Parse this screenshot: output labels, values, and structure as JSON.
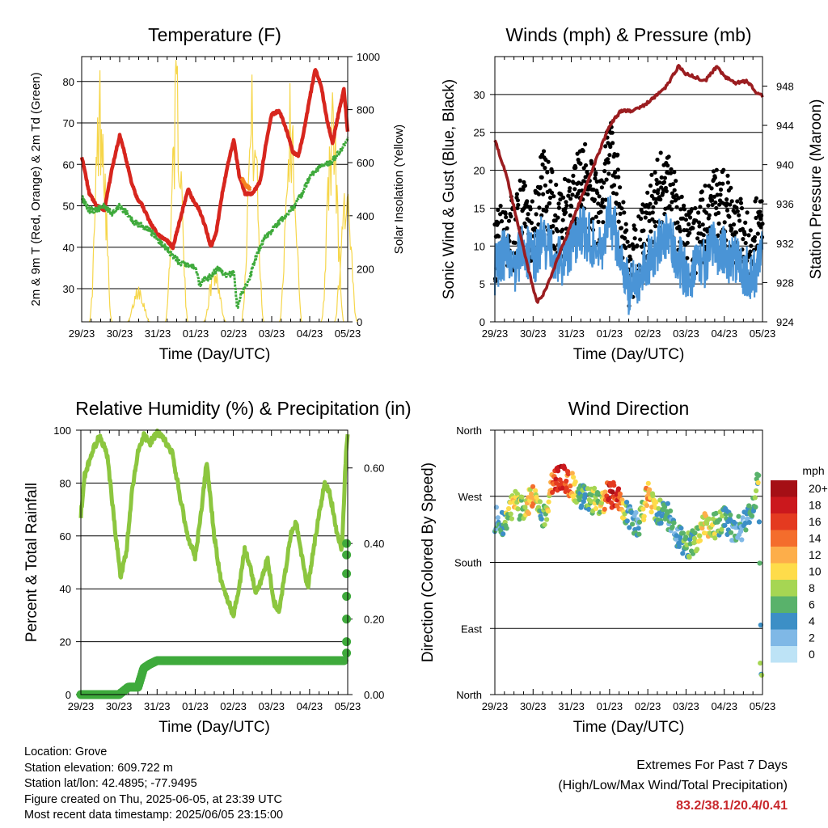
{
  "chart_data": [
    {
      "type": "line",
      "title": "Temperature (F)",
      "xlabel": "Time (Day/UTC)",
      "ylabel": "2m & 9m T (Red, Orange) & 2m Td (Green)",
      "ylabel_right": "Solar Insolation (Yellow)",
      "x_ticks": [
        "29/23",
        "30/23",
        "31/23",
        "01/23",
        "02/23",
        "03/23",
        "04/23",
        "05/23"
      ],
      "ylim": [
        22,
        86
      ],
      "y_ticks": [
        30,
        40,
        50,
        60,
        70,
        80
      ],
      "ylim_right": [
        0,
        1000
      ],
      "y_ticks_right": [
        0,
        200,
        400,
        600,
        800,
        1000
      ],
      "series": [
        {
          "key": "t2m",
          "color": "#d7261e",
          "x": [
            0,
            0.2,
            0.4,
            0.6,
            0.8,
            1,
            1.15,
            1.3,
            1.45,
            1.6,
            1.8,
            2,
            2.2,
            2.4,
            2.6,
            2.8,
            2.95,
            3.1,
            3.25,
            3.4,
            3.55,
            3.7,
            3.85,
            4,
            4.15,
            4.3,
            4.5,
            4.7,
            4.85,
            5,
            5.2,
            5.4,
            5.55,
            5.7,
            5.85,
            6,
            6.15,
            6.3,
            6.45,
            6.6,
            6.75,
            6.9,
            7
          ],
          "y": [
            62,
            53,
            50,
            49,
            59,
            67,
            62,
            56,
            52,
            50,
            46,
            43,
            42,
            40,
            47,
            54,
            51,
            49,
            45,
            40,
            44,
            53,
            60,
            66,
            57,
            53,
            53,
            56,
            65,
            72,
            73,
            68,
            63,
            62,
            68,
            76,
            83,
            79,
            71,
            65,
            72,
            78,
            68
          ]
        },
        {
          "key": "t9m",
          "color": "#f58220",
          "x": [
            4.2,
            4.3,
            4.45
          ],
          "y": [
            57,
            55,
            54
          ]
        },
        {
          "key": "td2m",
          "color": "#3faa3c",
          "x": [
            0,
            0.2,
            0.4,
            0.6,
            0.8,
            1,
            1.2,
            1.4,
            1.6,
            1.8,
            2,
            2.2,
            2.4,
            2.6,
            2.8,
            3,
            3.1,
            3.2,
            3.4,
            3.6,
            3.8,
            4,
            4.1,
            4.2,
            4.4,
            4.6,
            4.8,
            5,
            5.2,
            5.4,
            5.6,
            5.8,
            6,
            6.2,
            6.4,
            6.6,
            6.8,
            7
          ],
          "y": [
            52,
            49,
            49,
            50,
            48,
            50,
            48,
            46,
            45,
            44,
            42,
            40,
            38,
            36,
            36,
            35,
            31,
            32,
            33,
            35,
            33,
            34,
            25,
            29,
            32,
            38,
            42,
            44,
            46,
            48,
            50,
            53,
            57,
            59,
            60,
            61,
            63,
            66
          ]
        }
      ],
      "insolation": {
        "color": "#f6d64a",
        "peaks": [
          [
            0.5,
            1000
          ],
          [
            1.5,
            150
          ],
          [
            2.5,
            1000
          ],
          [
            3.5,
            230
          ],
          [
            4.5,
            950
          ],
          [
            5.5,
            920
          ],
          [
            6.6,
            890
          ],
          [
            6.95,
            580
          ]
        ]
      }
    },
    {
      "type": "scatter",
      "title": "Winds (mph) & Pressure (mb)",
      "xlabel": "Time (Day/UTC)",
      "ylabel": "Sonic Wind & Gust (Blue, Black)",
      "ylabel_right": "Station Pressure (Maroon)",
      "x_ticks": [
        "29/23",
        "30/23",
        "31/23",
        "01/23",
        "02/23",
        "03/23",
        "04/23",
        "05/23"
      ],
      "ylim": [
        0,
        35
      ],
      "y_ticks": [
        0,
        5,
        10,
        15,
        20,
        25,
        30
      ],
      "ylim_right": [
        924,
        951
      ],
      "y_ticks_right": [
        924,
        928,
        932,
        936,
        940,
        944,
        948
      ],
      "wind_mean": {
        "color": "#4a94d6",
        "x": [
          0,
          0.25,
          0.5,
          0.75,
          1,
          1.25,
          1.5,
          1.75,
          2,
          2.25,
          2.5,
          2.75,
          3,
          3.25,
          3.5,
          3.75,
          4,
          4.25,
          4.5,
          4.75,
          5,
          5.25,
          5.5,
          5.75,
          6,
          6.25,
          6.5,
          6.75,
          7
        ],
        "y": [
          7,
          9,
          7,
          10,
          8,
          11,
          9,
          8,
          10,
          12,
          11,
          9,
          14,
          10,
          4,
          6,
          8,
          10,
          11,
          9,
          6,
          7,
          8,
          10,
          9,
          8,
          7,
          6,
          9
        ]
      },
      "wind_gust": {
        "color": "#000000",
        "x": [
          0,
          0.25,
          0.5,
          0.75,
          1,
          1.25,
          1.5,
          1.75,
          2,
          2.25,
          2.5,
          2.75,
          3,
          3.25,
          3.5,
          3.75,
          4,
          4.25,
          4.5,
          4.75,
          5,
          5.25,
          5.5,
          5.75,
          6,
          6.25,
          6.5,
          6.75,
          7
        ],
        "y": [
          10,
          13,
          11,
          16,
          12,
          18,
          15,
          13,
          16,
          20,
          17,
          14,
          24,
          16,
          7,
          9,
          13,
          17,
          18,
          14,
          10,
          11,
          13,
          17,
          15,
          13,
          11,
          10,
          14
        ]
      },
      "pressure": {
        "color": "#9b1d20",
        "x": [
          0,
          0.3,
          0.6,
          0.9,
          1.1,
          1.3,
          1.5,
          1.8,
          2.1,
          2.4,
          2.7,
          3,
          3.3,
          3.6,
          3.9,
          4.2,
          4.5,
          4.8,
          5,
          5.2,
          5.5,
          5.8,
          6,
          6.3,
          6.6,
          6.8,
          7
        ],
        "y": [
          942.5,
          939,
          934,
          929,
          926,
          927,
          929,
          932,
          935,
          938,
          941,
          944,
          945.5,
          945.5,
          946,
          947,
          948,
          950,
          949.2,
          949,
          948.5,
          950,
          949,
          948.3,
          948.5,
          947.5,
          947
        ]
      }
    },
    {
      "type": "line",
      "title": "Relative Humidity (%) & Precipitation (in)",
      "xlabel": "Time (Day/UTC)",
      "ylabel": "Percent & Total Rainfall",
      "x_ticks": [
        "29/23",
        "30/23",
        "31/23",
        "01/23",
        "02/23",
        "03/23",
        "04/23",
        "05/23"
      ],
      "ylim": [
        0,
        100
      ],
      "y_ticks": [
        0,
        20,
        40,
        60,
        80,
        100
      ],
      "ylim_right": [
        0,
        0.7
      ],
      "y_ticks_right": [
        "0.00",
        "0.20",
        "0.40",
        "0.60"
      ],
      "series": [
        {
          "key": "rh",
          "color": "#8cc63f",
          "x": [
            0,
            0.1,
            0.3,
            0.5,
            0.7,
            0.9,
            1.05,
            1.2,
            1.35,
            1.5,
            1.65,
            1.8,
            2,
            2.2,
            2.4,
            2.6,
            2.8,
            3,
            3.15,
            3.3,
            3.5,
            3.65,
            3.8,
            4,
            4.15,
            4.3,
            4.45,
            4.6,
            4.75,
            4.9,
            5.05,
            5.2,
            5.35,
            5.5,
            5.65,
            5.8,
            5.95,
            6.1,
            6.25,
            6.4,
            6.55,
            6.7,
            6.85,
            6.95,
            7
          ],
          "y": [
            68,
            83,
            92,
            98,
            90,
            62,
            44,
            55,
            78,
            92,
            98,
            95,
            99,
            96,
            91,
            75,
            60,
            52,
            68,
            88,
            60,
            45,
            38,
            30,
            40,
            55,
            48,
            38,
            44,
            52,
            35,
            32,
            45,
            60,
            65,
            52,
            40,
            55,
            68,
            80,
            75,
            62,
            55,
            90,
            98
          ]
        },
        {
          "key": "precip",
          "color": "#3faa3c",
          "x": [
            0,
            1.0,
            1.25,
            1.5,
            1.65,
            1.8,
            2,
            3,
            4,
            5,
            6,
            6.9,
            6.95,
            6.97,
            7
          ],
          "y": [
            0,
            0,
            0.02,
            0.02,
            0.07,
            0.08,
            0.09,
            0.09,
            0.09,
            0.09,
            0.09,
            0.09,
            0.25,
            0.35,
            0.4
          ]
        }
      ]
    },
    {
      "type": "scatter",
      "title": "Wind Direction",
      "xlabel": "Time (Day/UTC)",
      "ylabel": "Direction (Colored By Speed)",
      "x_ticks": [
        "29/23",
        "30/23",
        "31/23",
        "01/23",
        "02/23",
        "03/23",
        "04/23",
        "05/23"
      ],
      "y_ticks": [
        "North",
        "East",
        "South",
        "West",
        "North"
      ],
      "ylim": [
        0,
        360
      ],
      "legend": {
        "title": "mph",
        "labels": [
          "20+",
          "18",
          "16",
          "14",
          "12",
          "10",
          "8",
          "6",
          "4",
          "2",
          "0"
        ],
        "colors": [
          "#a50f15",
          "#cb181d",
          "#e43a20",
          "#f46d2c",
          "#fdae4a",
          "#fedc4a",
          "#a6d653",
          "#59b26b",
          "#3c8fc6",
          "#7fb8e6",
          "#bde3f6"
        ],
        "placement": "right"
      },
      "x": [
        0,
        0.25,
        0.5,
        0.75,
        1,
        1.25,
        1.5,
        1.75,
        2,
        2.25,
        2.5,
        2.75,
        3,
        3.25,
        3.5,
        3.75,
        4,
        4.25,
        4.5,
        4.75,
        5,
        5.25,
        5.5,
        5.75,
        6,
        6.25,
        6.5,
        6.75,
        6.9,
        6.97
      ],
      "direction": [
        240,
        230,
        265,
        250,
        275,
        235,
        285,
        300,
        285,
        270,
        265,
        260,
        275,
        265,
        240,
        230,
        275,
        250,
        245,
        220,
        200,
        210,
        235,
        230,
        240,
        220,
        230,
        250,
        300,
        20
      ],
      "speed": [
        4,
        6,
        11,
        7,
        13,
        5,
        14,
        18,
        12,
        6,
        7,
        8,
        18,
        16,
        3,
        5,
        12,
        7,
        5,
        4,
        6,
        7,
        10,
        8,
        5,
        4,
        3,
        5,
        7,
        6
      ]
    }
  ],
  "info": {
    "location": "Location: Grove",
    "elevation": "Station elevation: 609.722 m",
    "latlon": "Station lat/lon: 42.4895; -77.9495",
    "created": "Figure created on Thu, 2025-06-05, at 23:39 UTC",
    "recent": "Most recent data timestamp: 2025/06/05 23:15:00"
  },
  "extremes": {
    "title": "Extremes For Past 7 Days",
    "subtitle": "(High/Low/Max Wind/Total Precipitation)",
    "values": "83.2/38.1/20.4/0.41",
    "color": "#c8272b"
  }
}
